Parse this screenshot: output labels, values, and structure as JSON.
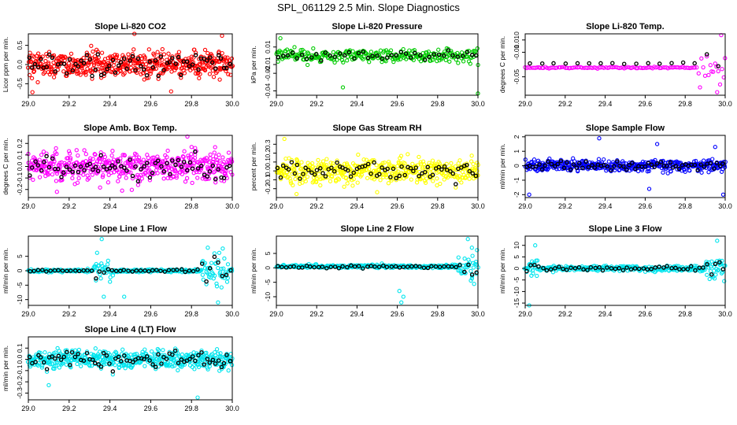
{
  "title": "SPL_061129  2.5 Min. Slope Diagnostics",
  "x_tick_labels": [
    "29.0",
    "29.2",
    "29.4",
    "29.6",
    "29.8",
    "30.0"
  ],
  "colors": {
    "background": "#ffffff",
    "axes": "#000000",
    "highlight_points": "#000000"
  },
  "chart_data": [
    {
      "type": "scatter",
      "title": "Slope Li-820 CO2",
      "ylabel": "Licor ppm per min.",
      "xlim": [
        29.0,
        30.0
      ],
      "ylim": [
        -0.8,
        0.8
      ],
      "yticks": [
        -0.5,
        0.0,
        0.5
      ],
      "ytick_labels": [
        "-0.5",
        "0.0",
        "0.5"
      ],
      "color": "#ff0000",
      "pattern": "noise",
      "center": 0.0,
      "spread": 0.28,
      "n": 500,
      "outliers": [
        [
          29.02,
          -0.72
        ],
        [
          29.52,
          0.82
        ],
        [
          29.95,
          0.75
        ],
        [
          29.7,
          -0.7
        ]
      ]
    },
    {
      "type": "scatter",
      "title": "Slope Li-820 Pressure",
      "ylabel": "kPa per min.",
      "xlim": [
        29.0,
        30.0
      ],
      "ylim": [
        -0.045,
        0.025
      ],
      "yticks": [
        -0.04,
        -0.02,
        -0.01,
        0.01
      ],
      "ytick_labels": [
        "-0.04",
        "-0.02",
        "-0.01",
        "0.01"
      ],
      "color": "#00cc00",
      "pattern": "noise",
      "center": 0.0,
      "spread": 0.006,
      "n": 300,
      "outliers": [
        [
          29.33,
          -0.036
        ],
        [
          30.0,
          -0.043
        ],
        [
          29.02,
          0.02
        ]
      ]
    },
    {
      "type": "scatter",
      "title": "Slope Li-820 Temp.",
      "ylabel": "degrees C per min.",
      "xlim": [
        29.0,
        30.0
      ],
      "ylim": [
        -0.08,
        0.02
      ],
      "yticks": [
        -0.05,
        -0.01,
        0.01
      ],
      "ytick_labels": [
        "-0.05",
        "-0.01",
        "0.010"
      ],
      "color": "#ff00ff",
      "pattern": "flat-then-burst",
      "center": -0.035,
      "spread": 0.001,
      "n": 120,
      "burst_from": 29.85,
      "burst_spread": 0.022,
      "outliers": [
        [
          29.98,
          0.018
        ],
        [
          29.96,
          -0.075
        ]
      ]
    },
    {
      "type": "scatter",
      "title": "Slope Amb. Box Temp.",
      "ylabel": "degrees C per min.",
      "xlim": [
        29.0,
        30.0
      ],
      "ylim": [
        -0.27,
        0.27
      ],
      "yticks": [
        -0.2,
        -0.1,
        0.0,
        0.1,
        0.2
      ],
      "ytick_labels": [
        "-0.2",
        "-0.1",
        "0.0",
        "0.1",
        "0.2"
      ],
      "color": "#ff00ff",
      "pattern": "noise",
      "center": 0.0,
      "spread": 0.1,
      "n": 500,
      "outliers": [
        [
          29.78,
          0.26
        ],
        [
          29.46,
          -0.21
        ],
        [
          29.14,
          -0.22
        ]
      ]
    },
    {
      "type": "scatter",
      "title": "Slope Gas Stream RH",
      "ylabel": "percent per min.",
      "xlim": [
        29.0,
        30.0
      ],
      "ylim": [
        -0.3,
        0.4
      ],
      "yticks": [
        -0.2,
        -0.1,
        0.0,
        0.1,
        0.2,
        0.3
      ],
      "ytick_labels": [
        "-0.2",
        "-0.1",
        "0.0",
        "0.1",
        "0.2",
        "0.3"
      ],
      "color": "#ffff00",
      "pattern": "noise",
      "center": 0.0,
      "spread": 0.11,
      "n": 500,
      "outliers": [
        [
          29.04,
          0.36
        ],
        [
          29.1,
          -0.26
        ],
        [
          29.5,
          -0.24
        ]
      ]
    },
    {
      "type": "scatter",
      "title": "Slope Sample Flow",
      "ylabel": "ml/min per min.",
      "xlim": [
        29.0,
        30.0
      ],
      "ylim": [
        -2.2,
        2.1
      ],
      "yticks": [
        -2,
        -1,
        0,
        1,
        2
      ],
      "ytick_labels": [
        "-2",
        "-1",
        "0",
        "1",
        "2"
      ],
      "color": "#0000ff",
      "pattern": "noise",
      "center": 0.0,
      "spread": 0.3,
      "n": 450,
      "outliers": [
        [
          29.37,
          1.9
        ],
        [
          29.62,
          -1.6
        ],
        [
          29.99,
          -2.0
        ],
        [
          29.02,
          -2.0
        ],
        [
          29.66,
          1.5
        ],
        [
          29.95,
          1.3
        ]
      ]
    },
    {
      "type": "scatter",
      "title": "Slope Line 1 Flow",
      "ylabel": "ml/min per min.",
      "xlim": [
        29.0,
        30.0
      ],
      "ylim": [
        -12,
        12
      ],
      "yticks": [
        -10,
        -5,
        0,
        5
      ],
      "ytick_labels": [
        "-10",
        "-5",
        "0",
        "5"
      ],
      "color": "#00e5ee",
      "pattern": "flat-with-bursts",
      "center": 0.0,
      "spread": 0.4,
      "n": 350,
      "bursts": [
        [
          29.32,
          29.42,
          4
        ],
        [
          29.85,
          29.98,
          4.5
        ]
      ],
      "outliers": [
        [
          29.36,
          11
        ],
        [
          29.37,
          -9
        ],
        [
          29.47,
          -9
        ],
        [
          29.93,
          -11
        ],
        [
          29.88,
          8
        ]
      ]
    },
    {
      "type": "scatter",
      "title": "Slope Line 2 Flow",
      "ylabel": "ml/min per min.",
      "xlim": [
        29.0,
        30.0
      ],
      "ylim": [
        -13,
        11
      ],
      "yticks": [
        -10,
        -5,
        0,
        5
      ],
      "ytick_labels": [
        "-10",
        "-5",
        "0",
        "5"
      ],
      "color": "#00e5ee",
      "pattern": "flat-with-bursts",
      "center": 0.5,
      "spread": 0.5,
      "n": 350,
      "bursts": [
        [
          29.9,
          30.0,
          4
        ]
      ],
      "outliers": [
        [
          29.62,
          -12
        ],
        [
          29.63,
          -10
        ],
        [
          29.61,
          -8
        ],
        [
          29.95,
          10
        ],
        [
          29.97,
          7
        ]
      ]
    },
    {
      "type": "scatter",
      "title": "Slope Line 3 Flow",
      "ylabel": "ml/min per min.",
      "xlim": [
        29.0,
        30.0
      ],
      "ylim": [
        -16,
        14
      ],
      "yticks": [
        -15,
        -10,
        -5,
        0,
        5,
        10
      ],
      "ytick_labels": [
        "-15",
        "-10",
        "-5",
        "0",
        "5",
        "10"
      ],
      "color": "#00e5ee",
      "pattern": "flat-with-bursts",
      "center": 0.0,
      "spread": 0.9,
      "n": 350,
      "bursts": [
        [
          29.02,
          29.07,
          3
        ],
        [
          29.9,
          30.0,
          4
        ]
      ],
      "outliers": [
        [
          29.02,
          -16
        ],
        [
          29.05,
          10
        ],
        [
          29.96,
          12
        ]
      ]
    },
    {
      "type": "scatter",
      "title": "Slope Line 4 (LT) Flow",
      "ylabel": "ml/min per min.",
      "xlim": [
        29.0,
        30.0
      ],
      "ylim": [
        -0.36,
        0.2
      ],
      "yticks": [
        -0.3,
        -0.2,
        -0.1,
        0.0,
        0.1
      ],
      "ytick_labels": [
        "-0.3",
        "-0.2",
        "-0.1",
        "0.0",
        "0.1"
      ],
      "color": "#00e5ee",
      "pattern": "noise",
      "center": 0.0,
      "spread": 0.07,
      "n": 500,
      "outliers": [
        [
          29.83,
          -0.34
        ],
        [
          29.1,
          -0.23
        ]
      ]
    }
  ]
}
